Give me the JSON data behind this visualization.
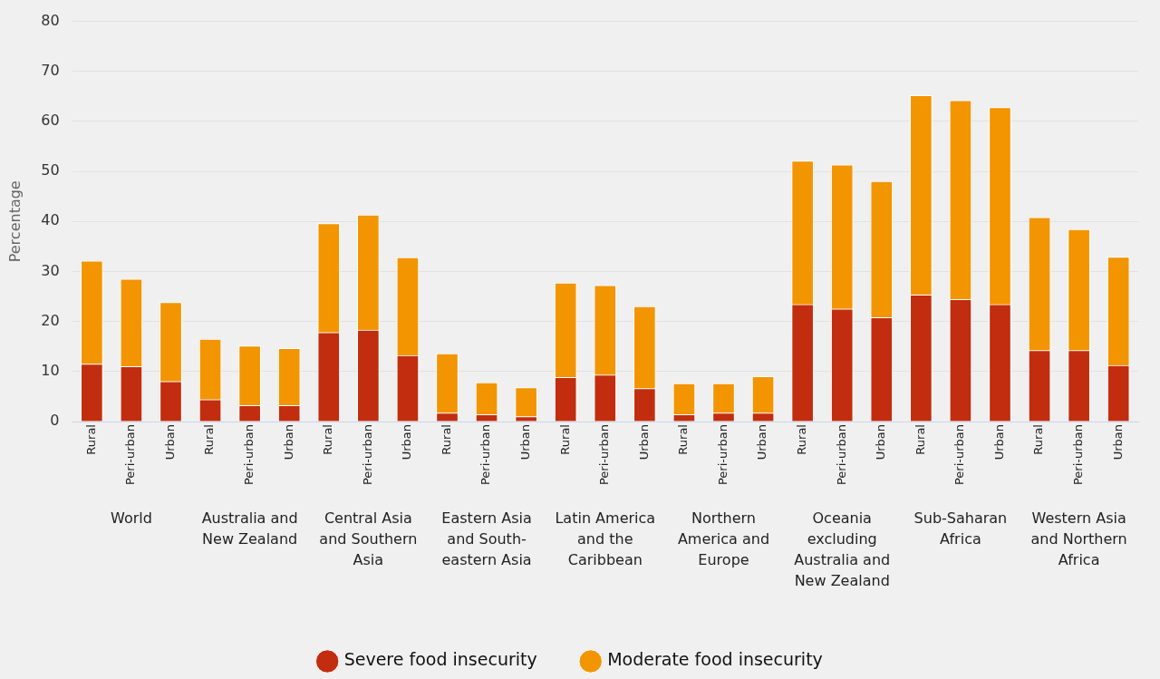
{
  "chart_data": {
    "type": "bar",
    "ylabel": "Percentage",
    "categories": [
      "Rural",
      "Peri-urban",
      "Urban",
      "Rural",
      "Peri-urban",
      "Urban",
      "Rural",
      "Peri-urban",
      "Urban",
      "Rural",
      "Peri-urban",
      "Urban",
      "Rural",
      "Peri-urban",
      "Urban",
      "Rural",
      "Peri-urban",
      "Urban",
      "Rural",
      "Peri-urban",
      "Urban",
      "Rural",
      "Peri-urban",
      "Urban",
      "Rural",
      "Peri-urban",
      "Urban"
    ],
    "series": [
      {
        "name": "Severe food insecurity",
        "color": "#c12d0e",
        "values": [
          11.5,
          11.0,
          8.0,
          4.4,
          3.2,
          3.2,
          17.8,
          18.3,
          13.2,
          1.7,
          1.4,
          1.0,
          8.8,
          9.3,
          6.6,
          1.4,
          1.7,
          1.7,
          23.4,
          22.5,
          20.8,
          25.3,
          24.4,
          23.4,
          14.2,
          14.2,
          11.2
        ]
      },
      {
        "name": "Moderate food insecurity",
        "color": "#f29500",
        "values": [
          20.6,
          17.5,
          15.8,
          12.1,
          11.9,
          11.4,
          21.8,
          23.0,
          19.6,
          11.9,
          6.4,
          5.8,
          18.9,
          17.9,
          16.4,
          6.2,
          5.9,
          7.3,
          28.7,
          28.8,
          27.2,
          39.9,
          39.8,
          39.4,
          26.6,
          24.2,
          21.7
        ]
      }
    ],
    "annotations": [
      "World",
      "Australia and New Zealand",
      "Central Asia and Southern Asia",
      "Eastern Asia and South-eastern Asia",
      "Latin America and the Caribbean",
      "Northern America and Europe",
      "Oceania excluding Australia and New Zealand",
      "Sub-Saharan Africa",
      "Western Asia and Northern Africa"
    ],
    "stacked": true,
    "ylim": [
      0,
      80
    ],
    "yticks": [
      0,
      10,
      20,
      30,
      40,
      50,
      60,
      70,
      80
    ],
    "grid": "y",
    "legend": "bottom"
  }
}
